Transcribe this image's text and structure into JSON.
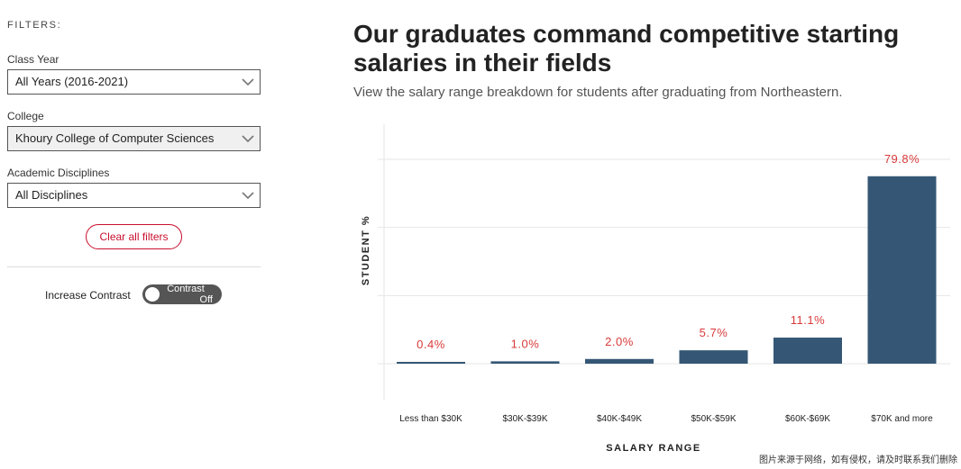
{
  "sidebar": {
    "filters_label": "FILTERS:",
    "class_year": {
      "label": "Class Year",
      "value": "All Years (2016-2021)"
    },
    "college": {
      "label": "College",
      "value": "Khoury College of Computer Sciences"
    },
    "disciplines": {
      "label": "Academic Disciplines",
      "value": "All Disciplines"
    },
    "clear_label": "Clear all filters",
    "contrast_label": "Increase Contrast",
    "toggle_line1": "Contrast",
    "toggle_line2": "Off"
  },
  "header": {
    "title": "Our graduates command competitive starting salaries in their fields",
    "subtitle": "View the salary range breakdown for students after graduating from Northeastern."
  },
  "colors": {
    "bar": "#355775",
    "label": "#d93a3a",
    "accent": "#c8102e"
  },
  "chart_data": {
    "type": "bar",
    "title": "",
    "xlabel": "SALARY RANGE",
    "ylabel": "STUDENT %",
    "categories": [
      "Less than $30K",
      "$30K-$39K",
      "$40K-$49K",
      "$50K-$59K",
      "$60K-$69K",
      "$70K and more"
    ],
    "values": [
      0.4,
      1.0,
      2.0,
      5.7,
      11.1,
      79.8
    ],
    "data_labels": [
      "0.4%",
      "1.0%",
      "2.0%",
      "5.7%",
      "11.1%",
      "79.8%"
    ],
    "ylim": [
      0,
      87
    ],
    "gridlines": [
      0,
      29,
      58,
      87
    ],
    "grid": true,
    "legend": "none"
  },
  "watermark": "图片来源于网络，如有侵权，请及时联系我们删除"
}
